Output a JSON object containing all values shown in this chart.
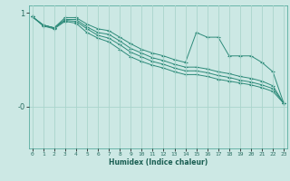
{
  "xlabel": "Humidex (Indice chaleur)",
  "background_color": "#cce8e4",
  "line_color": "#2e8b7a",
  "grid_color": "#aad4cc",
  "x_values": [
    0,
    1,
    2,
    3,
    4,
    5,
    6,
    7,
    8,
    9,
    10,
    11,
    12,
    13,
    14,
    15,
    16,
    17,
    18,
    19,
    20,
    21,
    22,
    23
  ],
  "lines": [
    [
      0.96,
      0.87,
      0.84,
      0.95,
      0.95,
      0.88,
      0.83,
      0.81,
      0.74,
      0.67,
      0.61,
      0.57,
      0.54,
      0.5,
      0.47,
      0.79,
      0.74,
      0.74,
      0.54,
      0.54,
      0.54,
      0.47,
      0.37,
      0.03
    ],
    [
      0.96,
      0.87,
      0.84,
      0.93,
      0.93,
      0.85,
      0.79,
      0.77,
      0.7,
      0.62,
      0.57,
      0.52,
      0.49,
      0.45,
      0.42,
      0.42,
      0.4,
      0.37,
      0.35,
      0.32,
      0.3,
      0.27,
      0.22,
      0.03
    ],
    [
      0.96,
      0.87,
      0.84,
      0.92,
      0.91,
      0.83,
      0.76,
      0.73,
      0.66,
      0.58,
      0.53,
      0.48,
      0.45,
      0.41,
      0.38,
      0.38,
      0.36,
      0.33,
      0.31,
      0.28,
      0.26,
      0.23,
      0.19,
      0.03
    ],
    [
      0.96,
      0.86,
      0.83,
      0.91,
      0.89,
      0.79,
      0.73,
      0.69,
      0.61,
      0.53,
      0.48,
      0.44,
      0.41,
      0.37,
      0.34,
      0.34,
      0.32,
      0.29,
      0.27,
      0.25,
      0.23,
      0.2,
      0.16,
      0.03
    ]
  ],
  "yticks": [
    0.0,
    1.0
  ],
  "ytick_labels": [
    "-0",
    "1"
  ],
  "ylim": [
    -0.45,
    1.08
  ],
  "xlim": [
    -0.3,
    23.3
  ]
}
